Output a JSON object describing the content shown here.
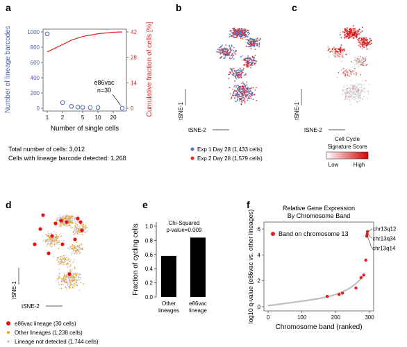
{
  "panels": {
    "a": {
      "letter": "a"
    },
    "b": {
      "letter": "b"
    },
    "c": {
      "letter": "c"
    },
    "d": {
      "letter": "d"
    },
    "e": {
      "letter": "e"
    },
    "f": {
      "letter": "f"
    }
  },
  "chart_data": [
    {
      "panel": "a",
      "type": "scatter",
      "xlabel": "Number of single cells",
      "ylabel": "Number of lineage barcodes",
      "ylabel_right": "Cumulative fraction of cells [%]",
      "x_scale": "log",
      "x_ticks": [
        "1",
        "2",
        "5",
        "10",
        "20"
      ],
      "y_ticks": [
        "0",
        "200",
        "400",
        "600",
        "800",
        "1000"
      ],
      "y_right_ticks": [
        "0",
        "14",
        "28",
        "42"
      ],
      "ylim": [
        0,
        1000
      ],
      "ylim_right": [
        0,
        42
      ],
      "series": [
        {
          "axis": "left",
          "color": "#4a63b0",
          "points": [
            [
              1,
              975
            ],
            [
              2,
              75
            ],
            [
              3,
              25
            ],
            [
              4,
              15
            ],
            [
              5,
              12
            ],
            [
              7,
              10
            ],
            [
              10,
              10
            ],
            [
              30,
              1
            ]
          ]
        },
        {
          "axis": "right",
          "color": "#e02020",
          "line": true,
          "points": [
            [
              1,
              31
            ],
            [
              2,
              35
            ],
            [
              3,
              37.5
            ],
            [
              5,
              39.5
            ],
            [
              10,
              41
            ],
            [
              20,
              41.8
            ],
            [
              30,
              42
            ]
          ]
        }
      ],
      "annotation": {
        "line1": "e86vac",
        "line2": "n=30",
        "x": 30,
        "y": 1
      },
      "footer": [
        "Total number of cells: 3,012",
        "Cells with lineage barcode detected: 1,268"
      ]
    },
    {
      "panel": "b",
      "type": "scatter",
      "xlabel": "tSNE-2",
      "ylabel": "tSNE-1",
      "series": [
        {
          "name": "Exp 1 Day 28 (1,433 cells)",
          "color": "#4a78c8",
          "count": 1433
        },
        {
          "name": "Exp 2 Day 28 (1,579 cells)",
          "color": "#e03030",
          "count": 1579
        }
      ]
    },
    {
      "panel": "c",
      "type": "scatter",
      "xlabel": "tSNE-2",
      "ylabel": "tSNE-1",
      "colorbar": {
        "title_line1": "Cell Cycle",
        "title_line2": "Signature Score",
        "low": "Low",
        "high": "High",
        "colors": [
          "#ffffff",
          "#d40000"
        ]
      }
    },
    {
      "panel": "d",
      "type": "scatter",
      "xlabel": "tSNE-2",
      "ylabel": "tSNE-1",
      "series": [
        {
          "name": "e86vac lineage (30 cells)",
          "color": "#e81010",
          "count": 30
        },
        {
          "name": "Other lineages (1,238 cells)",
          "color": "#f0a020",
          "count": 1238
        },
        {
          "name": "Lineage not detected (1,744 cells)",
          "color": "#c8cce0",
          "count": 1744
        }
      ]
    },
    {
      "panel": "e",
      "type": "bar",
      "ylabel": "Fraction of cycling cells",
      "categories": [
        [
          "Other",
          "lineages"
        ],
        [
          "e86vac",
          "lineage"
        ]
      ],
      "values": [
        0.58,
        0.84
      ],
      "ylim": [
        0,
        1.0
      ],
      "y_ticks": [
        "0.0",
        "0.2",
        "0.4",
        "0.6",
        "0.8",
        "1.0"
      ],
      "annotation": {
        "line1": "Chi-Squared",
        "line2": "p-value=0.009"
      },
      "color": "#000000"
    },
    {
      "panel": "f",
      "type": "scatter",
      "title_line1": "Relative Gene Expression",
      "title_line2": "By Chromosome Band",
      "xlabel": "Chromosome band (ranked)",
      "ylabel": "log10 q-value (e86vac vs. other lineages)",
      "x_ticks": [
        "0",
        "100",
        "200",
        "300"
      ],
      "y_ticks": [
        "0",
        "2",
        "4",
        "6"
      ],
      "xlim": [
        0,
        300
      ],
      "ylim": [
        0,
        6
      ],
      "legend": "Band on chromosome 13",
      "highlight_color": "#e02020",
      "base_color": "#c0c0c0",
      "highlights": [
        [
          175,
          0.8
        ],
        [
          210,
          0.95
        ],
        [
          220,
          1.05
        ],
        [
          260,
          1.45
        ],
        [
          275,
          2.25
        ],
        [
          283,
          2.45
        ],
        [
          289,
          3.6
        ],
        [
          292,
          5.45
        ],
        [
          293,
          5.6
        ],
        [
          294,
          5.8
        ]
      ],
      "labels": [
        {
          "text": "chr13q12",
          "x": 294,
          "y": 5.8
        },
        {
          "text": "chr13q34",
          "x": 293,
          "y": 5.6
        },
        {
          "text": "chr13q14",
          "x": 292,
          "y": 5.45
        }
      ]
    }
  ]
}
